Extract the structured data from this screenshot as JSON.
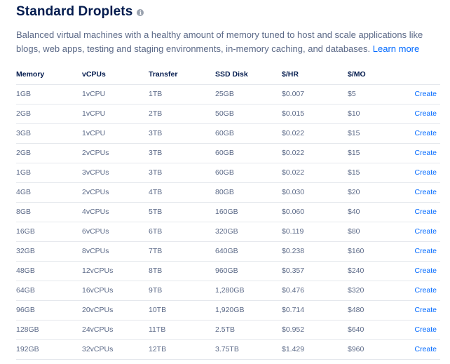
{
  "header": {
    "title": "Standard Droplets",
    "description": "Balanced virtual machines with a healthy amount of memory tuned to host and scale applications like blogs, web apps, testing and staging environments, in-memory caching, and databases.",
    "learn_more": "Learn more"
  },
  "table": {
    "columns": [
      "Memory",
      "vCPUs",
      "Transfer",
      "SSD Disk",
      "$/HR",
      "$/MO"
    ],
    "action_label": "Create",
    "rows": [
      [
        "1GB",
        "1vCPU",
        "1TB",
        "25GB",
        "$0.007",
        "$5"
      ],
      [
        "2GB",
        "1vCPU",
        "2TB",
        "50GB",
        "$0.015",
        "$10"
      ],
      [
        "3GB",
        "1vCPU",
        "3TB",
        "60GB",
        "$0.022",
        "$15"
      ],
      [
        "2GB",
        "2vCPUs",
        "3TB",
        "60GB",
        "$0.022",
        "$15"
      ],
      [
        "1GB",
        "3vCPUs",
        "3TB",
        "60GB",
        "$0.022",
        "$15"
      ],
      [
        "4GB",
        "2vCPUs",
        "4TB",
        "80GB",
        "$0.030",
        "$20"
      ],
      [
        "8GB",
        "4vCPUs",
        "5TB",
        "160GB",
        "$0.060",
        "$40"
      ],
      [
        "16GB",
        "6vCPUs",
        "6TB",
        "320GB",
        "$0.119",
        "$80"
      ],
      [
        "32GB",
        "8vCPUs",
        "7TB",
        "640GB",
        "$0.238",
        "$160"
      ],
      [
        "48GB",
        "12vCPUs",
        "8TB",
        "960GB",
        "$0.357",
        "$240"
      ],
      [
        "64GB",
        "16vCPUs",
        "9TB",
        "1,280GB",
        "$0.476",
        "$320"
      ],
      [
        "96GB",
        "20vCPUs",
        "10TB",
        "1,920GB",
        "$0.714",
        "$480"
      ],
      [
        "128GB",
        "24vCPUs",
        "11TB",
        "2.5TB",
        "$0.952",
        "$640"
      ],
      [
        "192GB",
        "32vCPUs",
        "12TB",
        "3.75TB",
        "$1.429",
        "$960"
      ]
    ]
  },
  "colors": {
    "title": "#031b4e",
    "text": "#5b6987",
    "link": "#0069ff",
    "divider": "#e5e8ed"
  },
  "icons": {
    "info": "info-icon"
  }
}
